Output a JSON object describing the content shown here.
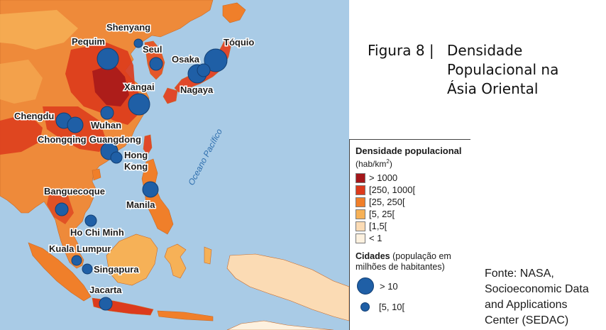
{
  "caption": {
    "figure_number": "Figura 8 |",
    "title_lines": [
      "Densidade",
      "Populacional na",
      "Ásia Oriental"
    ]
  },
  "map": {
    "ocean_label": "Oceano Pacífico",
    "cities": [
      {
        "name": "Shenyang",
        "size": "[5, 10["
      },
      {
        "name": "Pequim",
        "size": "> 10"
      },
      {
        "name": "Seul",
        "size": "[5, 10["
      },
      {
        "name": "Osaka",
        "size": "> 10"
      },
      {
        "name": "Tóquio",
        "size": "> 10"
      },
      {
        "name": "Nagaya",
        "size": "[5, 10["
      },
      {
        "name": "Xangai",
        "size": "> 10"
      },
      {
        "name": "Chengdu",
        "size": "[5, 10["
      },
      {
        "name": "Wuhan",
        "size": "[5, 10["
      },
      {
        "name": "Chongqing",
        "size": "[5, 10["
      },
      {
        "name": "Guangdong",
        "size": "> 10"
      },
      {
        "name": "Hong Kong",
        "size": "[5, 10["
      },
      {
        "name": "Manila",
        "size": "[5, 10["
      },
      {
        "name": "Banguecoque",
        "size": "[5, 10["
      },
      {
        "name": "Ho Chi Minh",
        "size": "[5, 10["
      },
      {
        "name": "Kuala Lumpur",
        "size": "[5, 10["
      },
      {
        "name": "Singapura",
        "size": "[5, 10["
      },
      {
        "name": "Jacarta",
        "size": "[5, 10["
      }
    ]
  },
  "legend": {
    "title": "Densidade populacional",
    "unit_prefix": "(hab/km",
    "unit_sup": "2",
    "unit_suffix": ")",
    "density_classes": [
      {
        "label": "> 1000",
        "color": "#a4161a"
      },
      {
        "label": "[250, 1000[",
        "color": "#dc3a1c"
      },
      {
        "label": "[25, 250[",
        "color": "#f07f2a"
      },
      {
        "label": "[5, 25[",
        "color": "#f6b157"
      },
      {
        "label": "[1,5[",
        "color": "#fbdbb4"
      },
      {
        "label": "< 1",
        "color": "#fdf1df"
      }
    ],
    "cities_title_bold": "Cidades",
    "cities_title_rest": " (população em milhões de habitantes)",
    "city_classes": [
      {
        "label": "> 10"
      },
      {
        "label": "[5, 10["
      }
    ]
  },
  "source": {
    "lines": [
      "Fonte: NASA,",
      "Socioeconomic Data",
      "and Applications",
      "Center (SEDAC)"
    ]
  },
  "colors": {
    "ocean": "#a9cbe6",
    "city_circle": "#1f5fa6"
  }
}
